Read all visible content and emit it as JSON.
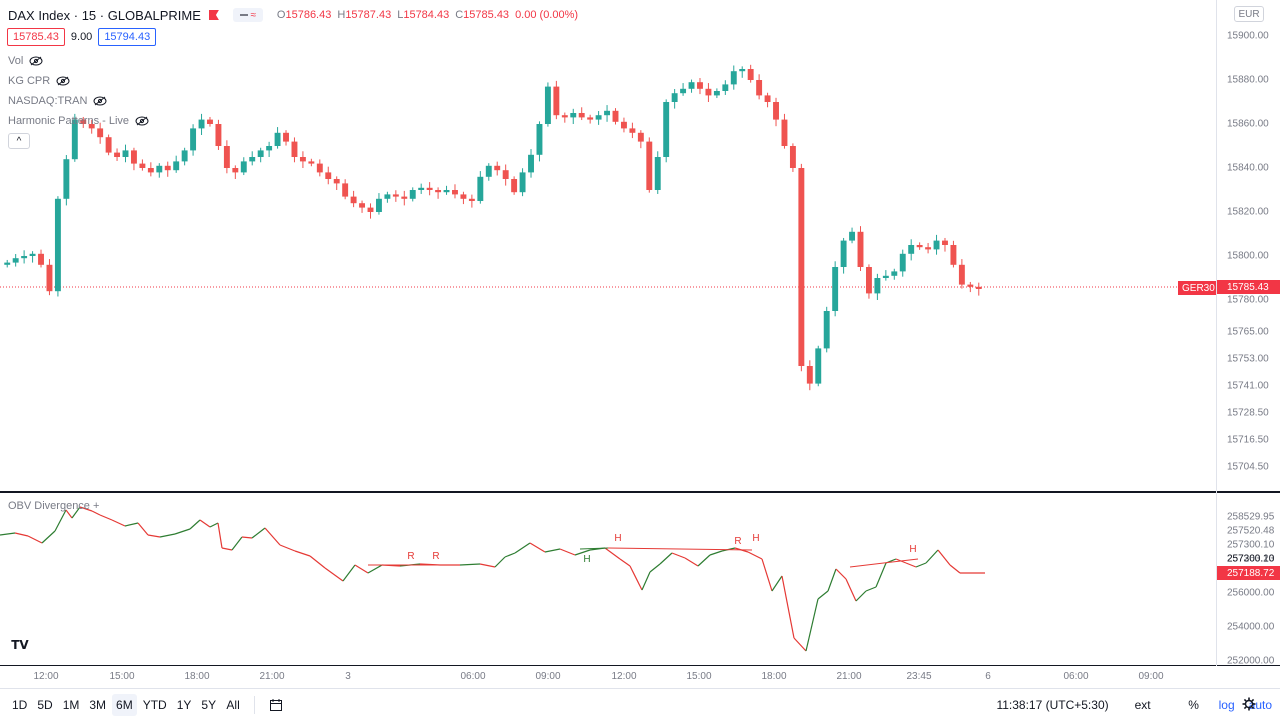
{
  "legend": {
    "title": "DAX Index · 15 · GLOBALPRIME",
    "badge_glyph": "≈",
    "open_label": "O",
    "open": "15786.43",
    "high_label": "H",
    "high": "15787.43",
    "low_label": "L",
    "low": "15784.43",
    "close_label": "C",
    "close": "15785.43",
    "change": "0.00 (0.00%)",
    "bid": "15785.43",
    "spread": "9.00",
    "ask": "15794.43"
  },
  "indicators": [
    {
      "label": "Vol"
    },
    {
      "label": "KG CPR"
    },
    {
      "label": "NASDAQ:TRAN"
    },
    {
      "label": "Harmonic Patterns - Live"
    }
  ],
  "collapse_glyph": "^",
  "price_axis": {
    "currency": "EUR",
    "labels": [
      "15900.00",
      "15880.00",
      "15860.00",
      "15840.00",
      "15820.00",
      "15800.00",
      "15780.00",
      "15765.00",
      "15753.00",
      "15741.00",
      "15728.50",
      "15716.50",
      "15704.50"
    ],
    "symbol": "GER30",
    "last_price": "15785.43"
  },
  "oscillator": {
    "title": "OBV Divergence +",
    "axis_labels": [
      "258529.95",
      "257520.48",
      "257300.10",
      "257263.23",
      "256000.00",
      "254000.00",
      "252000.00"
    ],
    "overlay_label": "257300.10",
    "current_value": "257188.72",
    "markers": [
      {
        "text": "R",
        "type": "bear"
      },
      {
        "text": "R",
        "type": "bear"
      },
      {
        "text": "H",
        "type": "bear"
      },
      {
        "text": "H",
        "type": "bull"
      },
      {
        "text": "R",
        "type": "bear"
      },
      {
        "text": "H",
        "type": "bear"
      },
      {
        "text": "H",
        "type": "bear"
      }
    ]
  },
  "time_axis": [
    "12:00",
    "15:00",
    "18:00",
    "21:00",
    "3",
    "06:00",
    "09:00",
    "12:00",
    "15:00",
    "18:00",
    "21:00",
    "23:45",
    "6",
    "06:00",
    "09:00"
  ],
  "toolbar": {
    "ranges": [
      "1D",
      "5D",
      "1M",
      "3M",
      "6M",
      "YTD",
      "1Y",
      "5Y",
      "All"
    ],
    "active_range": "6M",
    "clock": "11:38:17 (UTC+5:30)",
    "ext": "ext",
    "percent": "%",
    "log": "log",
    "auto": "auto"
  },
  "logo_text": "TV",
  "colors": {
    "up": "#26a69a",
    "down": "#ef5350",
    "obv_up": "#2e7d32",
    "obv_down": "#e53935",
    "accent": "#2962ff"
  }
}
